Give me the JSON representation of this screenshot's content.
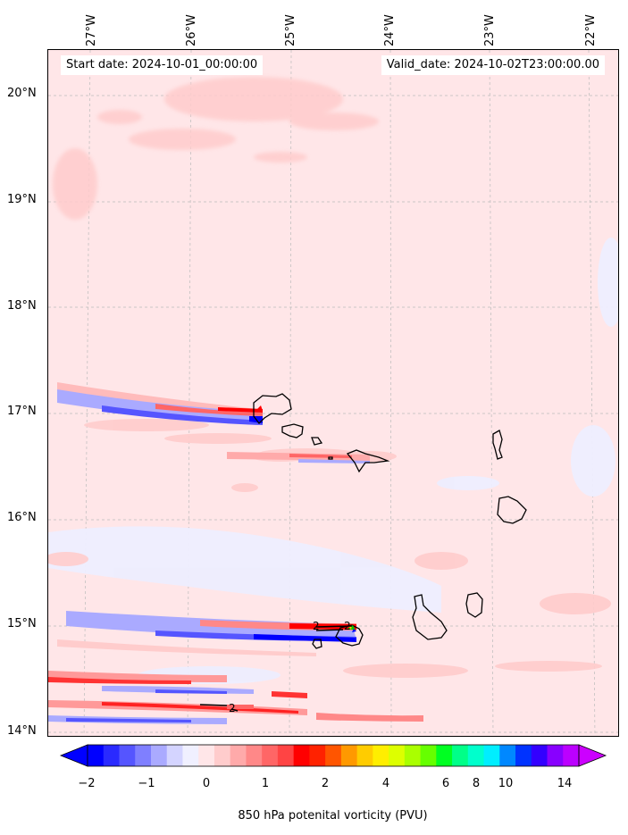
{
  "map": {
    "start_date": "Start date: 2024-10-01_00:00:00",
    "valid_date": "Valid_date: 2024-10-02T23:00:00.00",
    "lon_labels": [
      "27°W",
      "26°W",
      "25°W",
      "24°W",
      "23°W",
      "22°W"
    ],
    "lat_labels": [
      "20°N",
      "19°N",
      "18°N",
      "17°N",
      "16°N",
      "15°N",
      "14°N"
    ],
    "contour_labels": [
      "2",
      "2",
      "2"
    ],
    "background_color": "#ffe6e8",
    "island_outline_color": "#000000"
  },
  "colorbar": {
    "label": "850 hPa potenital vorticity (PVU)",
    "ticks": [
      "−2",
      "−1",
      "0",
      "1",
      "2",
      "4",
      "6",
      "8",
      "10",
      "14"
    ],
    "colors": [
      "#0000ff",
      "#2a2aff",
      "#5555ff",
      "#7f7fff",
      "#aaaaff",
      "#d4d4ff",
      "#f0f0ff",
      "#ffe6e8",
      "#ffcccc",
      "#ffaaaa",
      "#ff8888",
      "#ff6666",
      "#ff4444",
      "#ff0000",
      "#ff2200",
      "#ff5500",
      "#ff9900",
      "#ffcc00",
      "#ffee00",
      "#ddff00",
      "#aaff00",
      "#66ff00",
      "#00ff22",
      "#00ff88",
      "#00ffcc",
      "#00eeff",
      "#0088ff",
      "#0033ff",
      "#3300ff",
      "#8800ff",
      "#bb00ff"
    ],
    "under_color": "#0000ff",
    "over_color": "#cc00ff"
  }
}
